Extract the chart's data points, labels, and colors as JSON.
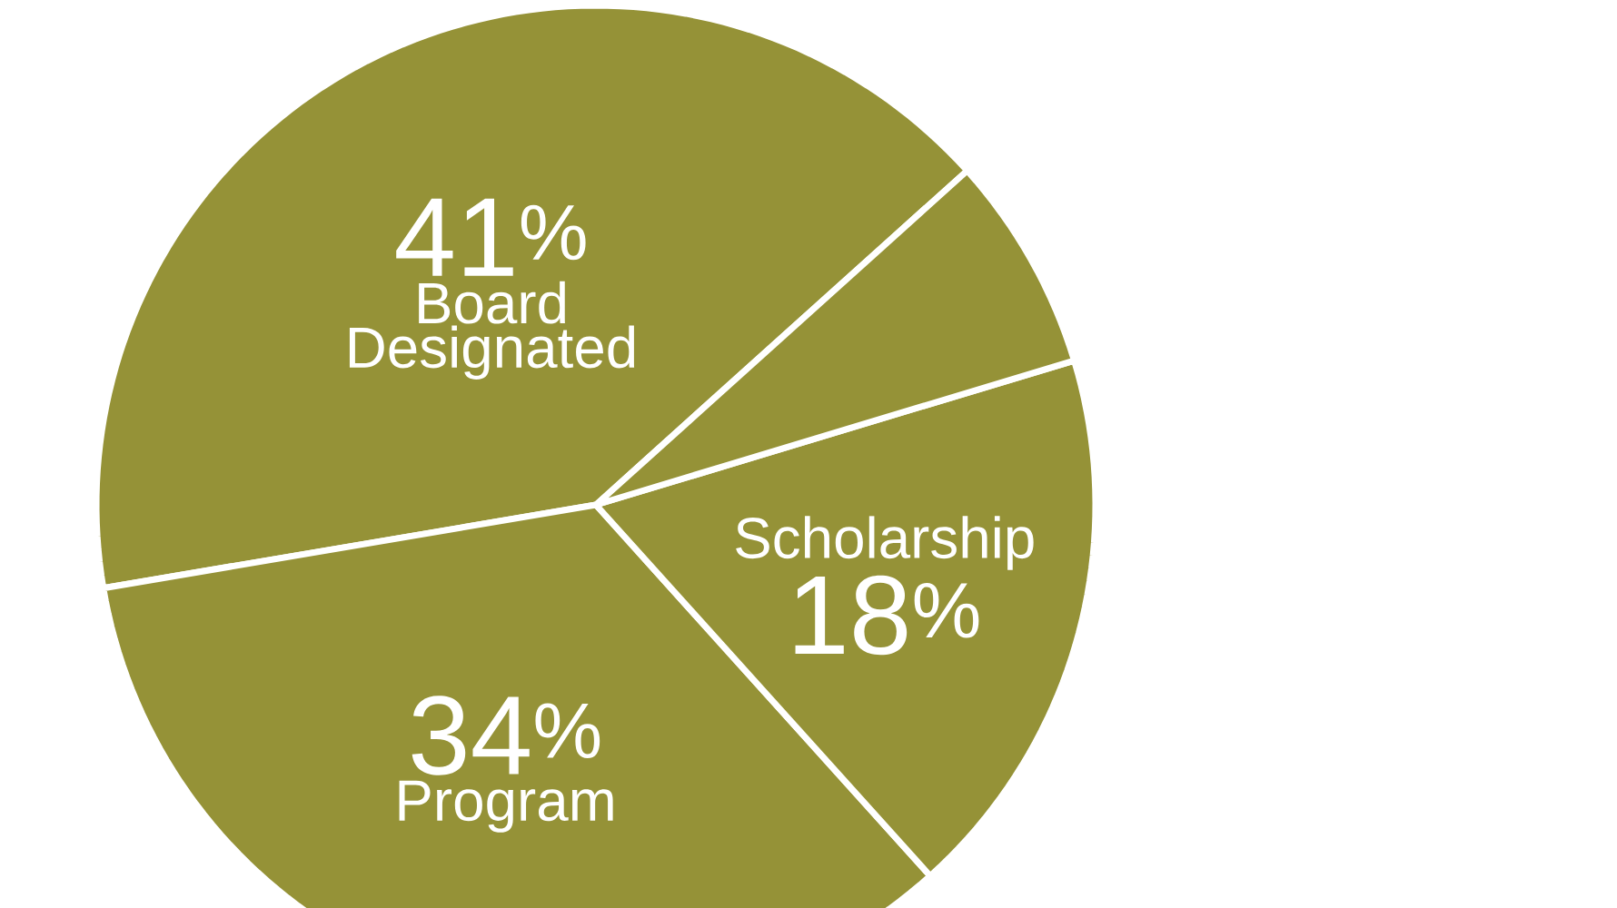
{
  "chart_data": {
    "type": "pie",
    "categories": [
      "Board Designated",
      "Program",
      "Scholarship",
      null
    ],
    "values": [
      41,
      34,
      18,
      7
    ],
    "value_labels": [
      "41$^{%}$",
      "34$^{%}$",
      "18$^{%}$",
      null
    ],
    "colors": [
      "#959237",
      "#959237",
      "#959237",
      "#959237"
    ]
  }
}
